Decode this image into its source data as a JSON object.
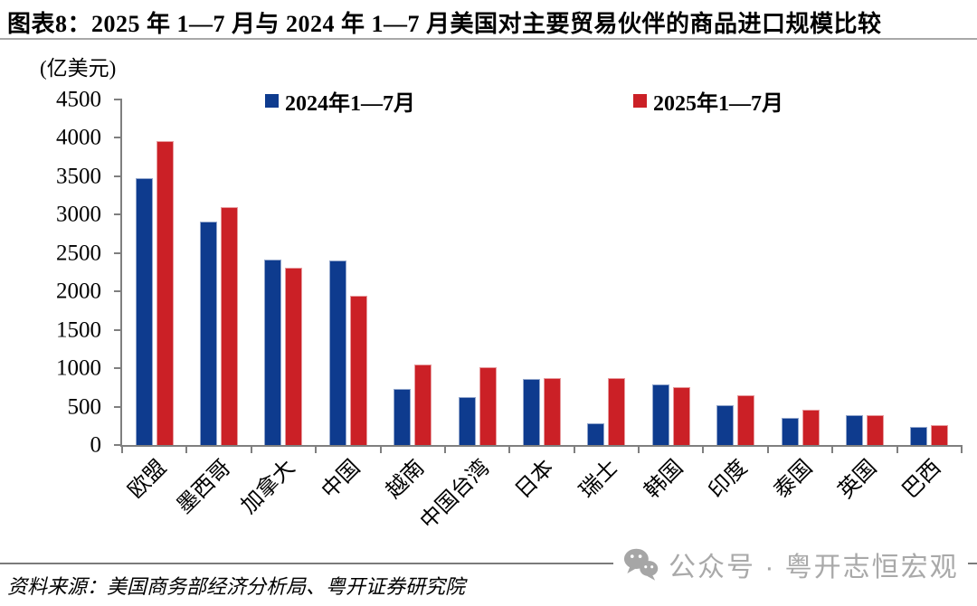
{
  "header": {
    "title": "图表8：2025 年 1—7 月与 2024 年 1—7 月美国对主要贸易伙伴的商品进口规模比较"
  },
  "unit_label": "(亿美元)",
  "footer": {
    "source": "资料来源：美国商务部经济分析局、粤开证券研究院"
  },
  "watermark": {
    "icon": "wechat-icon",
    "text": "公众号 · 粤开志恒宏观",
    "color": "#a9a9a9"
  },
  "chart_data": {
    "type": "bar",
    "title": "图表8：2025 年 1—7 月与 2024 年 1—7 月美国对主要贸易伙伴的商品进口规模比较",
    "ylabel": "亿美元",
    "categories": [
      "欧盟",
      "墨西哥",
      "加拿大",
      "中国",
      "越南",
      "中国台湾",
      "日本",
      "瑞士",
      "韩国",
      "印度",
      "泰国",
      "英国",
      "巴西"
    ],
    "series": [
      {
        "name": "2024年1—7月",
        "color": "#0e3b8e",
        "values": [
          3480,
          2910,
          2420,
          2400,
          730,
          630,
          860,
          280,
          790,
          520,
          350,
          390,
          240
        ]
      },
      {
        "name": "2025年1—7月",
        "color": "#cb2026",
        "values": [
          3960,
          3100,
          2310,
          1940,
          1050,
          1010,
          875,
          870,
          760,
          650,
          460,
          390,
          260
        ]
      }
    ],
    "ylim": [
      0,
      4500
    ],
    "yticks": [
      0,
      500,
      1000,
      1500,
      2000,
      2500,
      3000,
      3500,
      4000,
      4500
    ],
    "grid": false,
    "legend_position": "top",
    "axis_color": "#7f7f7f"
  }
}
